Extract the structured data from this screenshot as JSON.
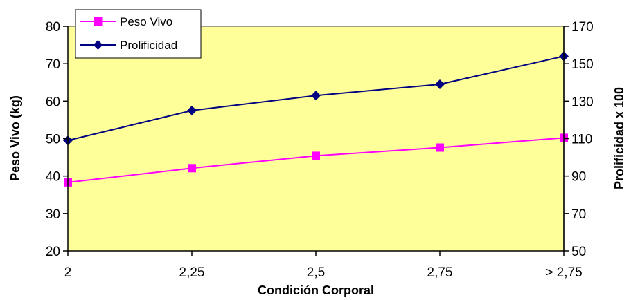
{
  "chart_data": {
    "type": "line",
    "categories": [
      "2",
      "2,25",
      "2,5",
      "2,75",
      "> 2,75"
    ],
    "xlabel": "Condición Corporal",
    "ylabel": "Peso Vivo (kg)",
    "y2label": "Prolificidad x 100",
    "ylim": [
      20,
      80
    ],
    "y2lim": [
      50,
      170
    ],
    "yticks": [
      "20",
      "30",
      "40",
      "50",
      "60",
      "70",
      "80"
    ],
    "y2ticks": [
      "50",
      "70",
      "90",
      "110",
      "130",
      "150",
      "170"
    ],
    "grid": false,
    "legend_position": "top-left",
    "plot_background": "#FFFF99",
    "series": [
      {
        "name": "Peso Vivo",
        "axis": "left",
        "marker": "square",
        "color": "#FF00FF",
        "values": [
          38.3,
          42.1,
          45.4,
          47.6,
          50.2
        ]
      },
      {
        "name": "Prolificidad",
        "axis": "right",
        "marker": "diamond",
        "color": "#000080",
        "values": [
          109,
          125,
          133,
          139,
          154
        ]
      }
    ]
  }
}
